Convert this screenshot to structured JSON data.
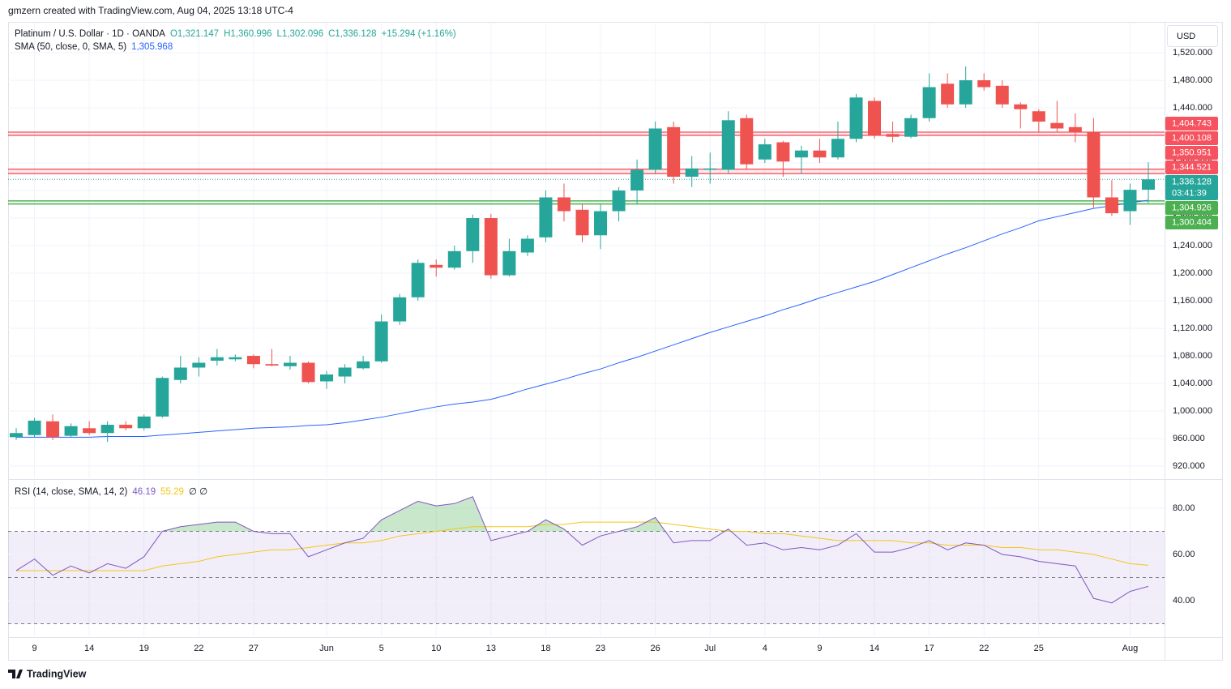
{
  "header": {
    "credit": "gmzern created with TradingView.com, Aug 04, 2025 13:18 UTC-4"
  },
  "footer": {
    "brand": "TradingView"
  },
  "chart_data": [
    {
      "type": "candlestick",
      "title": "Platinum / U.S. Dollar · 1D · OANDA",
      "legend": [
        "O1,321.147",
        "H1,360.996",
        "L1,302.096",
        "C1,336.128",
        "+15.294 (+1.16%)"
      ],
      "currency": "USD",
      "up_color": "#26a69a",
      "down_color": "#ef5350",
      "categories": [
        null,
        "9",
        null,
        null,
        "14",
        null,
        null,
        "19",
        null,
        null,
        "22",
        null,
        null,
        "27",
        null,
        null,
        null,
        "Jun",
        null,
        null,
        "5",
        null,
        null,
        "10",
        null,
        null,
        "13",
        null,
        null,
        "18",
        null,
        null,
        "23",
        null,
        null,
        "26",
        null,
        null,
        "Jul",
        null,
        null,
        "4",
        null,
        null,
        "9",
        null,
        null,
        "14",
        null,
        null,
        "17",
        null,
        null,
        "22",
        null,
        null,
        "25",
        null,
        null,
        null,
        null,
        "Aug",
        null
      ],
      "open": [
        962,
        965,
        985,
        964,
        975,
        968,
        980,
        975,
        992,
        1045,
        1063,
        1073,
        1075,
        1080,
        1068,
        1065,
        1070,
        1043,
        1050,
        1062,
        1072,
        1130,
        1165,
        1212,
        1208,
        1232,
        1280,
        1197,
        1230,
        1252,
        1310,
        1292,
        1255,
        1290,
        1320,
        1350,
        1412,
        1340,
        1350,
        1350,
        1425,
        1365,
        1390,
        1368,
        1378,
        1368,
        1395,
        1450,
        1402,
        1398,
        1425,
        1475,
        1445,
        1480,
        1472,
        1445,
        1435,
        1418,
        1412,
        1405,
        1310,
        1290,
        1321.147
      ],
      "high": [
        975,
        990,
        995,
        982,
        985,
        985,
        985,
        995,
        1050,
        1080,
        1078,
        1090,
        1082,
        1082,
        1090,
        1080,
        1072,
        1058,
        1068,
        1080,
        1140,
        1170,
        1220,
        1220,
        1240,
        1285,
        1286,
        1250,
        1255,
        1320,
        1330,
        1300,
        1300,
        1325,
        1365,
        1420,
        1420,
        1370,
        1375,
        1435,
        1430,
        1395,
        1392,
        1385,
        1395,
        1420,
        1460,
        1455,
        1420,
        1430,
        1490,
        1490,
        1500,
        1490,
        1480,
        1448,
        1438,
        1450,
        1432,
        1425,
        1335,
        1330,
        1360.996
      ],
      "low": [
        958,
        962,
        958,
        962,
        965,
        955,
        972,
        972,
        990,
        1040,
        1050,
        1066,
        1072,
        1062,
        1065,
        1060,
        1040,
        1032,
        1040,
        1060,
        1070,
        1125,
        1160,
        1195,
        1205,
        1215,
        1192,
        1195,
        1225,
        1245,
        1275,
        1245,
        1235,
        1275,
        1300,
        1345,
        1330,
        1325,
        1330,
        1345,
        1350,
        1360,
        1340,
        1345,
        1360,
        1365,
        1390,
        1395,
        1390,
        1396,
        1420,
        1440,
        1440,
        1465,
        1440,
        1410,
        1405,
        1405,
        1390,
        1295,
        1283,
        1270,
        1302.096
      ],
      "close": [
        968,
        986,
        962,
        978,
        968,
        980,
        975,
        992,
        1048,
        1063,
        1070,
        1078,
        1078,
        1068,
        1066,
        1070,
        1042,
        1053,
        1063,
        1072,
        1130,
        1165,
        1215,
        1208,
        1232,
        1280,
        1197,
        1232,
        1250,
        1310,
        1290,
        1255,
        1290,
        1320,
        1350,
        1410,
        1340,
        1352,
        1352,
        1422,
        1358,
        1387,
        1362,
        1378,
        1368,
        1395,
        1455,
        1400,
        1398,
        1425,
        1470,
        1445,
        1480,
        1470,
        1445,
        1438,
        1420,
        1410,
        1405,
        1310,
        1287,
        1321,
        1336.128
      ],
      "overlays": [
        {
          "name": "SMA (50, close, 0, SMA, 5)",
          "value_label": "1,305.968",
          "color": "#2962ff",
          "values": [
            962,
            962,
            962,
            962,
            962,
            963,
            963,
            963,
            965,
            967,
            969,
            971,
            973,
            975,
            976,
            977,
            979,
            980,
            983,
            987,
            991,
            996,
            1001,
            1006,
            1010,
            1013,
            1017,
            1024,
            1032,
            1039,
            1046,
            1054,
            1061,
            1070,
            1078,
            1087,
            1096,
            1105,
            1114,
            1122,
            1130,
            1138,
            1147,
            1155,
            1164,
            1172,
            1180,
            1188,
            1198,
            1208,
            1218,
            1228,
            1237,
            1247,
            1257,
            1266,
            1276,
            1282,
            1288,
            1294,
            1298,
            1302,
            1305.968
          ]
        }
      ],
      "levels": [
        {
          "color": "#f7525f",
          "values": [
            1404.743,
            1400.108
          ],
          "labels": [
            "1,404.743",
            "1,400.108"
          ]
        },
        {
          "color": "#f7525f",
          "values": [
            1350.951,
            1344.521
          ],
          "labels": [
            "1,350.951",
            "1,344.521"
          ]
        },
        {
          "color": "#4caf50",
          "values": [
            1304.926,
            1300.404
          ],
          "labels": [
            "1,304.926",
            "1,300.404"
          ]
        }
      ],
      "last": {
        "value": 1336.128,
        "label": "1,336.128",
        "countdown": "03:41:39",
        "color": "#26a69a"
      },
      "ylim": [
        902.4,
        1564.7
      ],
      "yticks": [
        {
          "value": 920,
          "label": "920.000"
        },
        {
          "value": 960,
          "label": "960.000"
        },
        {
          "value": 1000,
          "label": "1,000.000"
        },
        {
          "value": 1040,
          "label": "1,040.000"
        },
        {
          "value": 1080,
          "label": "1,080.000"
        },
        {
          "value": 1120,
          "label": "1,120.000"
        },
        {
          "value": 1160,
          "label": "1,160.000"
        },
        {
          "value": 1200,
          "label": "1,200.000"
        },
        {
          "value": 1240,
          "label": "1,240.000"
        },
        {
          "value": 1280,
          "label": "1,280.000"
        },
        {
          "value": 1320,
          "label": "1,320.000"
        },
        {
          "value": 1360,
          "label": "1,360.000"
        },
        {
          "value": 1400,
          "label": "1,400.000"
        },
        {
          "value": 1440,
          "label": "1,440.000"
        },
        {
          "value": 1480,
          "label": "1,480.000"
        },
        {
          "value": 1520,
          "label": "1,520.000"
        }
      ],
      "grid": true
    },
    {
      "type": "line",
      "title": "RSI (14, close, SMA, 14, 2)",
      "extra_label": "∅ ∅",
      "series": [
        {
          "color": "#7e57c2",
          "value_label": "46.19",
          "values": [
            53,
            58,
            51,
            55,
            52,
            56,
            54,
            59,
            70,
            72,
            73,
            74,
            74,
            70,
            69,
            69,
            59,
            62,
            65,
            67,
            75,
            79,
            83,
            81,
            82,
            85,
            66,
            68,
            70,
            75,
            71,
            64,
            68,
            70,
            72,
            76,
            65,
            66,
            66,
            71,
            64,
            65,
            62,
            63,
            62,
            64,
            69,
            61,
            61,
            63,
            66,
            62,
            65,
            64,
            60,
            59,
            57,
            56,
            55,
            41,
            39,
            44,
            46.19
          ]
        },
        {
          "color": "#f5c518",
          "value_label": "55.29",
          "values": [
            53,
            53,
            53,
            53,
            53,
            53,
            53,
            53,
            55,
            56,
            57,
            59,
            60,
            61,
            62,
            62,
            63,
            64,
            65,
            65,
            66,
            68,
            69,
            70,
            71,
            72,
            72,
            72,
            72,
            73,
            73,
            74,
            74,
            74,
            74,
            74,
            73,
            72,
            71,
            70,
            70,
            69,
            69,
            68,
            67,
            66,
            66,
            66,
            66,
            65,
            65,
            64,
            64,
            64,
            63,
            63,
            62,
            62,
            61,
            60,
            58,
            56,
            55.29
          ]
        }
      ],
      "bands": [
        70,
        50,
        30
      ],
      "ylim": [
        24.56,
        92.28
      ],
      "yticks": [
        {
          "value": 40,
          "label": "40.00"
        },
        {
          "value": 60,
          "label": "60.00"
        },
        {
          "value": 80,
          "label": "80.00"
        }
      ],
      "grid": true
    }
  ]
}
